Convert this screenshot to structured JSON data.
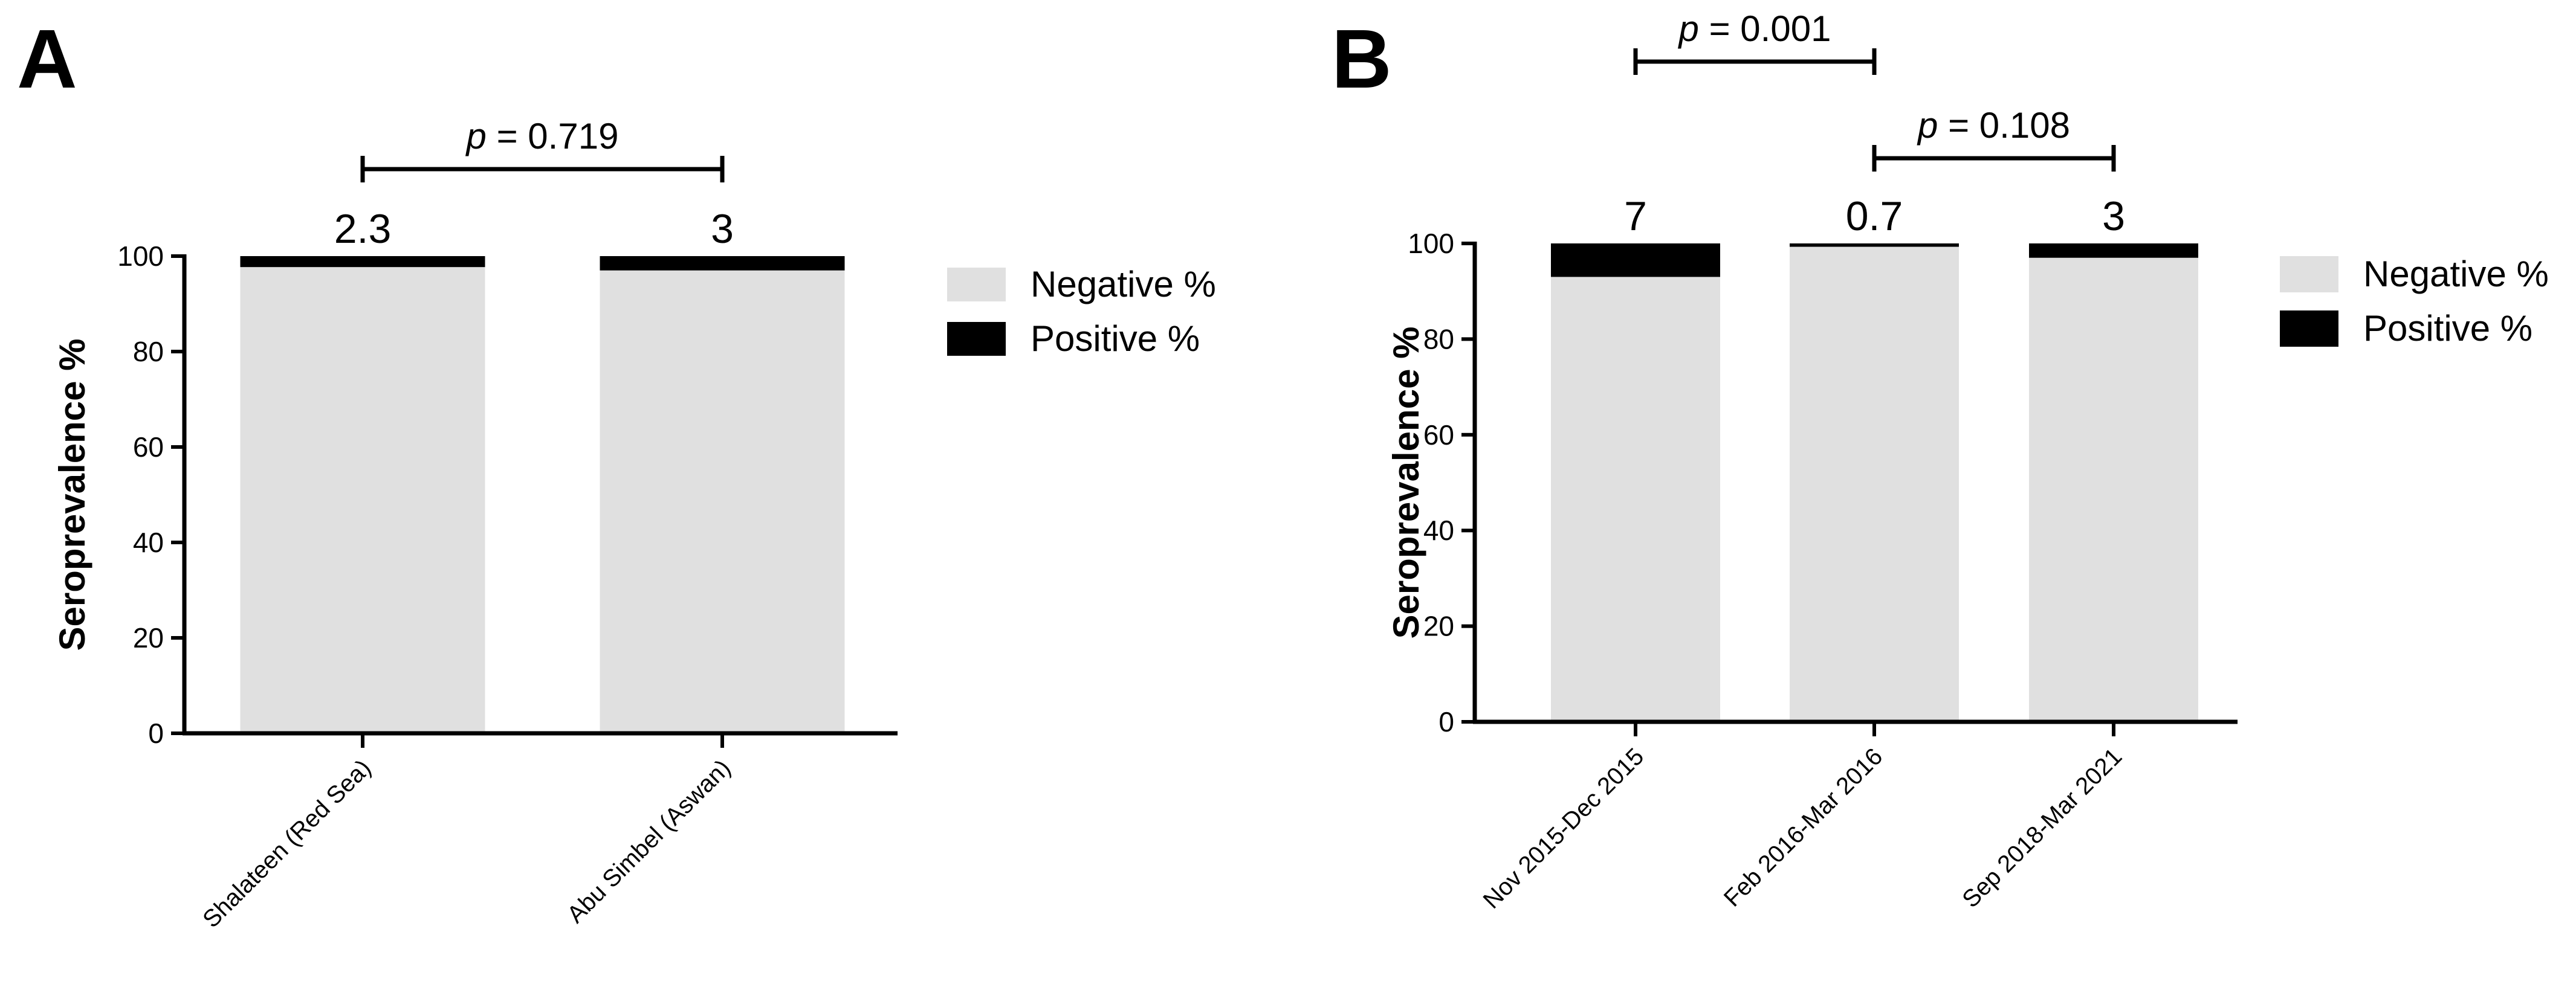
{
  "chart_data": [
    {
      "panel": "A",
      "type": "bar",
      "stacked": true,
      "categories": [
        "Shalateen (Red Sea)",
        "Abu Simbel (Aswan)"
      ],
      "series": [
        {
          "name": "Negative %",
          "values": [
            97.7,
            97
          ],
          "color": "#e0e0e0"
        },
        {
          "name": "Positive %",
          "values": [
            2.3,
            3
          ],
          "color": "#000000"
        }
      ],
      "data_labels": [
        "2.3",
        "3"
      ],
      "ylabel": "Seroprevalence %",
      "xlabel": "",
      "ylim": [
        0,
        100
      ],
      "yticks": [
        0,
        20,
        40,
        60,
        80,
        100
      ],
      "legend": [
        "Negative %",
        "Positive %"
      ],
      "legend_position": "right",
      "comparisons": [
        {
          "from": 0,
          "to": 1,
          "p_symbol": "p",
          "p_value": "= 0.719",
          "level": 1
        }
      ]
    },
    {
      "panel": "B",
      "type": "bar",
      "stacked": true,
      "categories": [
        "Nov 2015-Dec 2015",
        "Feb 2016-Mar 2016",
        "Sep 2018-Mar 2021"
      ],
      "series": [
        {
          "name": "Negative %",
          "values": [
            93,
            99.3,
            97
          ],
          "color": "#e0e0e0"
        },
        {
          "name": "Positive %",
          "values": [
            7,
            0.7,
            3
          ],
          "color": "#000000"
        }
      ],
      "data_labels": [
        "7",
        "0.7",
        "3"
      ],
      "ylabel": "Seroprevalence %",
      "xlabel": "",
      "ylim": [
        0,
        100
      ],
      "yticks": [
        0,
        20,
        40,
        60,
        80,
        100
      ],
      "legend": [
        "Negative %",
        "Positive %"
      ],
      "legend_position": "right",
      "comparisons": [
        {
          "from": 0,
          "to": 1,
          "p_symbol": "p",
          "p_value": "= 0.001",
          "level": 2
        },
        {
          "from": 1,
          "to": 2,
          "p_symbol": "p",
          "p_value": "= 0.108",
          "level": 1
        }
      ]
    }
  ]
}
